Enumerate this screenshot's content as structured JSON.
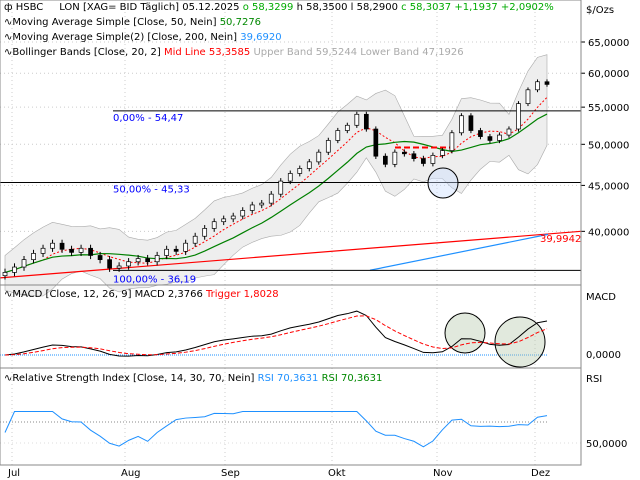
{
  "header": {
    "symbol": "HSBC",
    "exchange": "LON [XAG= BID Täglich]",
    "date": "05.12.2025",
    "open": "o 58,3299",
    "high": "h 58,3500",
    "low": "l 58,2900",
    "close": "c 58,3037",
    "change": "+1,1937",
    "change_pct": "+2,0902%",
    "unit": "$/Ozs"
  },
  "legend": {
    "ma50": {
      "label": "Moving Average Simple  [Close, 50, Nein]",
      "value": "50,7276"
    },
    "ma200": {
      "label": "Moving Average Simple(2)  [Close, 200, Nein]",
      "value": "39,6920"
    },
    "bb": {
      "label": "Bollinger Bands  [Close, 20, 2]",
      "mid": "Mid Line 53,3585",
      "upper": "Upper Band 59,5244",
      "lower": "Lower Band 47,1926"
    },
    "macd": {
      "label": "MACD  [Close, 12, 26, 9]",
      "macd": "MACD 2,3766",
      "trigger": "Trigger 1,8028",
      "axis": "MACD",
      "zero": "0,0000"
    },
    "rsi": {
      "label": "Relative Strength Index  [Close, 14, 30, 70, Nein]",
      "v1": "RSI 70,3631",
      "v2": "RSI 70,3631",
      "axis": "RSI",
      "fifty": "50,0000"
    }
  },
  "fib": [
    {
      "label": "0,00% - 54,47",
      "value": 54.47
    },
    {
      "label": "50,00% - 45,33",
      "value": 45.33
    },
    {
      "label": "100,00% - 36,19",
      "value": 36.19
    }
  ],
  "trend_label": "39,9942",
  "chart_data": {
    "type": "candlestick",
    "y_scale": "log",
    "y_ticks": [
      {
        "v": 65,
        "l": "65,0000"
      },
      {
        "v": 60,
        "l": "60,0000"
      },
      {
        "v": 55,
        "l": "55,0000"
      },
      {
        "v": 50,
        "l": "50,0000"
      },
      {
        "v": 45,
        "l": "45,0000"
      },
      {
        "v": 40,
        "l": "40,0000"
      }
    ],
    "x_labels": [
      "Jul",
      "Aug",
      "Sep",
      "Okt",
      "Nov",
      "Dez"
    ],
    "closes": [
      36.0,
      36.5,
      37.2,
      37.8,
      38.3,
      38.8,
      38.2,
      37.9,
      38.3,
      37.6,
      37.2,
      36.4,
      36.6,
      37.0,
      37.3,
      37.0,
      37.6,
      38.2,
      38.0,
      38.8,
      39.5,
      40.3,
      41.0,
      41.3,
      41.6,
      42.2,
      42.8,
      43.0,
      44.0,
      45.5,
      46.4,
      47.0,
      47.8,
      49.0,
      50.5,
      51.8,
      52.5,
      54.0,
      52.0,
      48.5,
      47.5,
      49.0,
      48.8,
      48.2,
      47.6,
      48.6,
      49.2,
      51.5,
      53.8,
      51.8,
      51.0,
      50.5,
      51.2,
      52.0,
      55.5,
      57.5,
      58.7,
      58.3
    ],
    "red_trendline": [
      35.5,
      40.0
    ],
    "ma200_visible": [
      36.2,
      39.69
    ],
    "colors": {
      "up": "#ffffff",
      "down": "#000000",
      "ma50": "#008000",
      "ma200": "#1e90ff",
      "bb": "#ff0000",
      "trend": "#ff0000",
      "fib": "#0000ff",
      "macd": "#000000",
      "trigger": "#ff0000",
      "rsi": "#1e90ff"
    }
  }
}
